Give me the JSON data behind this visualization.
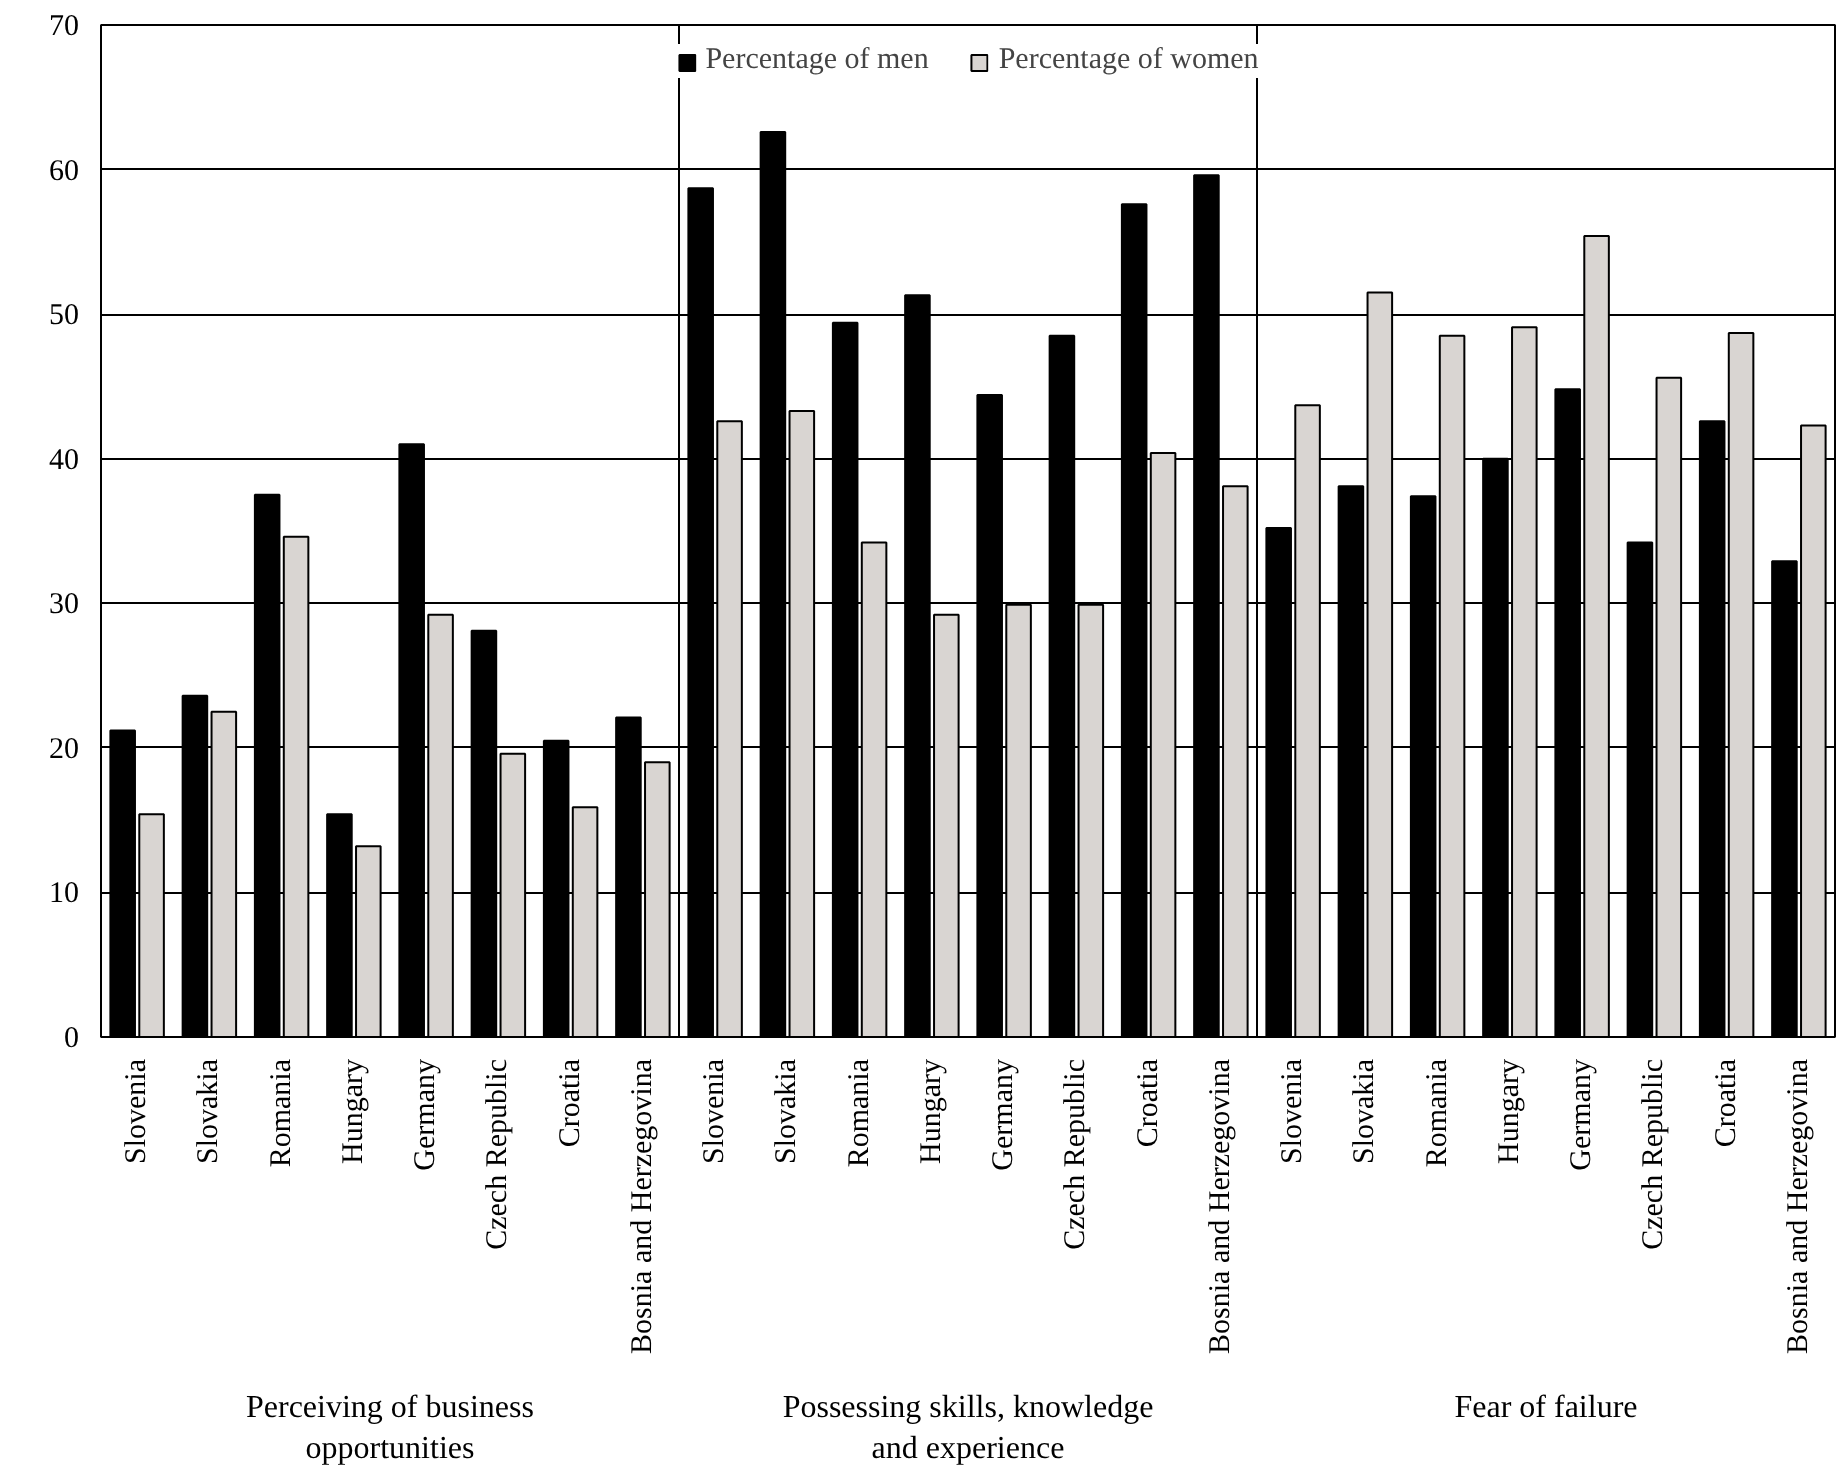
{
  "chart_data": {
    "type": "bar",
    "categories": [
      "Slovenia",
      "Slovakia",
      "Romania",
      "Hungary",
      "Germany",
      "Czech Republic",
      "Croatia",
      "Bosnia and Herzegovina",
      "Slovenia",
      "Slovakia",
      "Romania",
      "Hungary",
      "Germany",
      "Czech Republic",
      "Croatia",
      "Bosnia and Herzegovina",
      "Slovenia",
      "Slovakia",
      "Romania",
      "Hungary",
      "Germany",
      "Czech Republic",
      "Croatia",
      "Bosnia and Herzegovina"
    ],
    "series": [
      {
        "name": "Percentage of men",
        "color": "#000000",
        "values": [
          21.2,
          23.6,
          37.5,
          15.4,
          41.0,
          28.1,
          20.5,
          22.1,
          58.7,
          62.6,
          49.4,
          51.3,
          44.4,
          48.5,
          57.6,
          59.6,
          35.2,
          38.1,
          37.4,
          40.0,
          44.8,
          34.2,
          42.6,
          32.9
        ]
      },
      {
        "name": "Percentage of women",
        "color": "#d9d5d2",
        "values": [
          15.4,
          22.5,
          34.6,
          13.2,
          29.2,
          19.6,
          15.9,
          19.0,
          42.6,
          43.3,
          34.2,
          29.2,
          29.9,
          29.9,
          40.4,
          38.1,
          43.7,
          51.5,
          48.5,
          49.1,
          55.4,
          45.6,
          48.7,
          42.3
        ]
      }
    ],
    "annotations": [
      "Perceiving of business opportunities",
      "Possessing skills, knowledge and experience",
      "Fear of failure"
    ],
    "ylim": [
      0,
      70
    ],
    "yticks": [
      0,
      10,
      20,
      30,
      40,
      50,
      60,
      70
    ],
    "grid": "y",
    "legend": "top"
  }
}
